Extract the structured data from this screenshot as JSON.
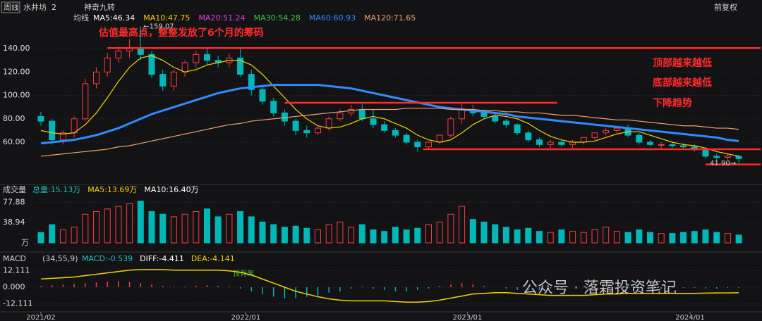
{
  "chart_data": {
    "type": "candlestick",
    "period": "周线",
    "name": "水井坊",
    "count_label": "2",
    "indicator": "神奇九转",
    "adjust": "前复权",
    "ma_title": "均线",
    "ma_legend": [
      {
        "text": "MA5:46.34",
        "color": "#ffffff"
      },
      {
        "text": "MA10:47.75",
        "color": "#f5d200"
      },
      {
        "text": "MA20:51.24",
        "color": "#e040e0"
      },
      {
        "text": "MA30:54.28",
        "color": "#3cc83c"
      },
      {
        "text": "MA60:60.93",
        "color": "#2f8cff"
      },
      {
        "text": "MA120:71.65",
        "color": "#f0a070"
      }
    ],
    "annotations": [
      "估值最高点，整整发放了6个月的筹码",
      "顶部越来越低",
      "底部越来越低",
      "下降趋势"
    ],
    "peak_label": "←159.07",
    "trough_label": "41.90→",
    "ylim": [
      26.3,
      163.5
    ],
    "yticks": [
      {
        "value": 60,
        "label": "60.00"
      },
      {
        "value": 80,
        "label": "80.00"
      },
      {
        "value": 100,
        "label": "100.00"
      },
      {
        "value": 120,
        "label": "120.00"
      },
      {
        "value": 140,
        "label": "140.00"
      }
    ],
    "open": [
      82,
      78,
      62,
      68,
      80,
      110,
      120,
      132,
      138,
      140,
      135,
      118,
      108,
      120,
      128,
      135,
      130,
      128,
      132,
      118,
      105,
      95,
      85,
      78,
      70,
      68,
      72,
      80,
      85,
      88,
      80,
      75,
      70,
      66,
      60,
      56,
      60,
      66,
      80,
      88,
      85,
      82,
      78,
      75,
      68,
      62,
      58,
      60,
      58,
      60,
      64,
      68,
      70,
      72,
      66,
      60,
      58,
      58,
      57,
      56,
      54,
      48,
      47,
      48
    ],
    "close": [
      78,
      62,
      68,
      80,
      110,
      120,
      132,
      138,
      140,
      135,
      118,
      108,
      120,
      128,
      135,
      130,
      128,
      132,
      118,
      105,
      95,
      85,
      78,
      70,
      68,
      72,
      80,
      85,
      88,
      80,
      75,
      70,
      66,
      60,
      56,
      60,
      66,
      80,
      88,
      85,
      82,
      78,
      75,
      68,
      62,
      58,
      60,
      58,
      60,
      64,
      68,
      70,
      72,
      66,
      60,
      58,
      58,
      57,
      56,
      54,
      48,
      47,
      48,
      46
    ],
    "high": [
      86,
      80,
      70,
      82,
      114,
      124,
      136,
      142,
      148,
      159.07,
      138,
      122,
      122,
      130,
      138,
      140,
      134,
      136,
      140,
      122,
      108,
      98,
      88,
      80,
      74,
      74,
      82,
      88,
      92,
      94,
      88,
      78,
      72,
      68,
      62,
      60,
      66,
      82,
      94,
      92,
      88,
      85,
      80,
      76,
      70,
      64,
      62,
      62,
      62,
      64,
      68,
      72,
      74,
      75,
      68,
      62,
      60,
      60,
      59,
      58,
      55,
      50,
      50,
      49
    ],
    "low": [
      74,
      58,
      58,
      64,
      78,
      106,
      116,
      128,
      132,
      130,
      115,
      104,
      104,
      116,
      124,
      126,
      124,
      124,
      116,
      100,
      92,
      82,
      74,
      66,
      64,
      66,
      70,
      78,
      82,
      78,
      72,
      68,
      64,
      58,
      52,
      54,
      58,
      64,
      76,
      82,
      80,
      76,
      72,
      66,
      60,
      56,
      55,
      56,
      55,
      58,
      62,
      66,
      68,
      64,
      58,
      56,
      55,
      55,
      54,
      52,
      46,
      44,
      45,
      41.9
    ],
    "series": [
      {
        "name": "MA10",
        "color": "#f5d200",
        "values": [
          70,
          68,
          67,
          68,
          75,
          85,
          98,
          112,
          124,
          132,
          134,
          130,
          124,
          120,
          122,
          126,
          128,
          130,
          130,
          126,
          118,
          108,
          98,
          88,
          80,
          74,
          72,
          73,
          76,
          80,
          82,
          80,
          76,
          72,
          66,
          62,
          60,
          62,
          68,
          75,
          80,
          83,
          82,
          80,
          76,
          70,
          65,
          62,
          60,
          60,
          61,
          64,
          67,
          69,
          69,
          66,
          63,
          60,
          58,
          57,
          55,
          52,
          50,
          48
        ]
      },
      {
        "name": "MA60",
        "color": "#2f8cff",
        "values": [
          59,
          60,
          61,
          62,
          64,
          66,
          69,
          72,
          76,
          80,
          84,
          87,
          90,
          93,
          96,
          99,
          102,
          104,
          106,
          107,
          108,
          109,
          109,
          109,
          109,
          109,
          108,
          107,
          106,
          104,
          102,
          100,
          98,
          96,
          94,
          92,
          90,
          89,
          88,
          87,
          86,
          85,
          84,
          82,
          81,
          80,
          79,
          78,
          77,
          76,
          75,
          74,
          73,
          72,
          71,
          70,
          69,
          68,
          67,
          66,
          65,
          64,
          62,
          61
        ]
      },
      {
        "name": "MA120",
        "color": "#f0a070",
        "values": [
          48,
          49,
          50,
          51,
          52,
          53,
          54,
          56,
          57,
          59,
          61,
          63,
          65,
          67,
          69,
          71,
          73,
          75,
          76,
          78,
          79,
          80,
          81,
          82,
          83,
          84,
          85,
          86,
          87,
          88,
          88,
          88,
          88,
          89,
          89,
          89,
          89,
          88,
          88,
          88,
          87,
          87,
          86,
          86,
          85,
          85,
          84,
          83,
          83,
          82,
          81,
          80,
          79,
          79,
          78,
          77,
          76,
          75,
          74,
          74,
          73,
          72,
          72,
          71
        ]
      }
    ],
    "levels": [
      {
        "value": 140.5,
        "from": 6,
        "to": 65
      },
      {
        "value": 93.7,
        "from": 22,
        "to": 46.6
      },
      {
        "value": 54,
        "from": 34.5,
        "to": 65
      },
      {
        "value": 41,
        "from": 60,
        "to": 65
      }
    ],
    "x_labels": [
      {
        "index": 0,
        "label": "2021/02"
      },
      {
        "index": 18.5,
        "label": "2022/01"
      },
      {
        "index": 38.5,
        "label": "2023/01"
      },
      {
        "index": 58.6,
        "label": "2024/01"
      }
    ],
    "volume_title": "成交量",
    "volume_legend": [
      {
        "text": "总量:15.13万",
        "color": "#20c0c0"
      },
      {
        "text": "MA5:13.69万",
        "color": "#f5d200"
      },
      {
        "text": "MA10:16.40万",
        "color": "#ffffff"
      }
    ],
    "volume_unit": "万",
    "volume_ylim": [
      0,
      85
    ],
    "volume_yticks": [
      38.94,
      77.88
    ],
    "volume": [
      20,
      35,
      25,
      30,
      55,
      60,
      65,
      70,
      75,
      80,
      60,
      55,
      50,
      55,
      60,
      65,
      50,
      55,
      60,
      50,
      40,
      35,
      30,
      32,
      28,
      25,
      35,
      40,
      30,
      35,
      25,
      22,
      30,
      25,
      28,
      35,
      40,
      55,
      70,
      45,
      40,
      35,
      30,
      25,
      28,
      22,
      20,
      25,
      22,
      20,
      25,
      30,
      22,
      20,
      25,
      20,
      18,
      18,
      20,
      22,
      25,
      20,
      18,
      15
    ],
    "macd_title": "MACD",
    "macd_params": "(34,55,9)",
    "macd_legend": [
      {
        "text": "MACD:-0.539",
        "color": "#20c0c0"
      },
      {
        "text": "DIFF:-4.411",
        "color": "#ffffff"
      },
      {
        "text": "DEA:-4.141",
        "color": "#f5d200"
      }
    ],
    "macd_ylim": [
      -15.5,
      15.5
    ],
    "macd_yticks": [
      {
        "value": -12.111,
        "label": "-12.111"
      },
      {
        "value": 0,
        "label": "0.000"
      },
      12.111
    ],
    "macd_hist": [
      1,
      1.5,
      2,
      2.5,
      3,
      3.5,
      4,
      4.5,
      4,
      3,
      2,
      1,
      0.5,
      0.5,
      1,
      1.5,
      1,
      0.5,
      -1,
      -3,
      -5,
      -7,
      -8,
      -8,
      -7,
      -6,
      -4,
      -3,
      -1,
      0.5,
      -1,
      -2,
      -3,
      -3,
      -2,
      -1,
      1,
      2,
      3,
      2,
      1,
      0,
      -1,
      -2,
      -2,
      -2,
      -1,
      -0.5,
      0,
      0.5,
      0.5,
      0.5,
      0,
      -0.5,
      -1,
      -1,
      -1,
      -0.5,
      -0.5,
      -0.5,
      -1,
      -1,
      -0.5,
      -0.5
    ],
    "dea": [
      6,
      6.5,
      7,
      7.5,
      8.5,
      9.5,
      10.5,
      11.5,
      12.5,
      13,
      13,
      13,
      12.5,
      12.5,
      12.5,
      12.5,
      12.5,
      12,
      11,
      9,
      6,
      3,
      0,
      -3,
      -5,
      -7,
      -8.5,
      -9.5,
      -10,
      -10,
      -10,
      -10,
      -10.5,
      -11,
      -11,
      -10.5,
      -9.5,
      -8,
      -6.5,
      -5,
      -4.5,
      -4,
      -4,
      -4.5,
      -5,
      -5.5,
      -6,
      -6,
      -6,
      -6,
      -5.5,
      -5,
      -5,
      -4.5,
      -4.5,
      -4.5,
      -4.5,
      -4.5,
      -4.5,
      -4.5,
      -4.3,
      -4.2,
      -4.2,
      -4.1
    ],
    "macd_note": "顶背离",
    "watermark": "公众号 · 落霜投资笔记"
  }
}
